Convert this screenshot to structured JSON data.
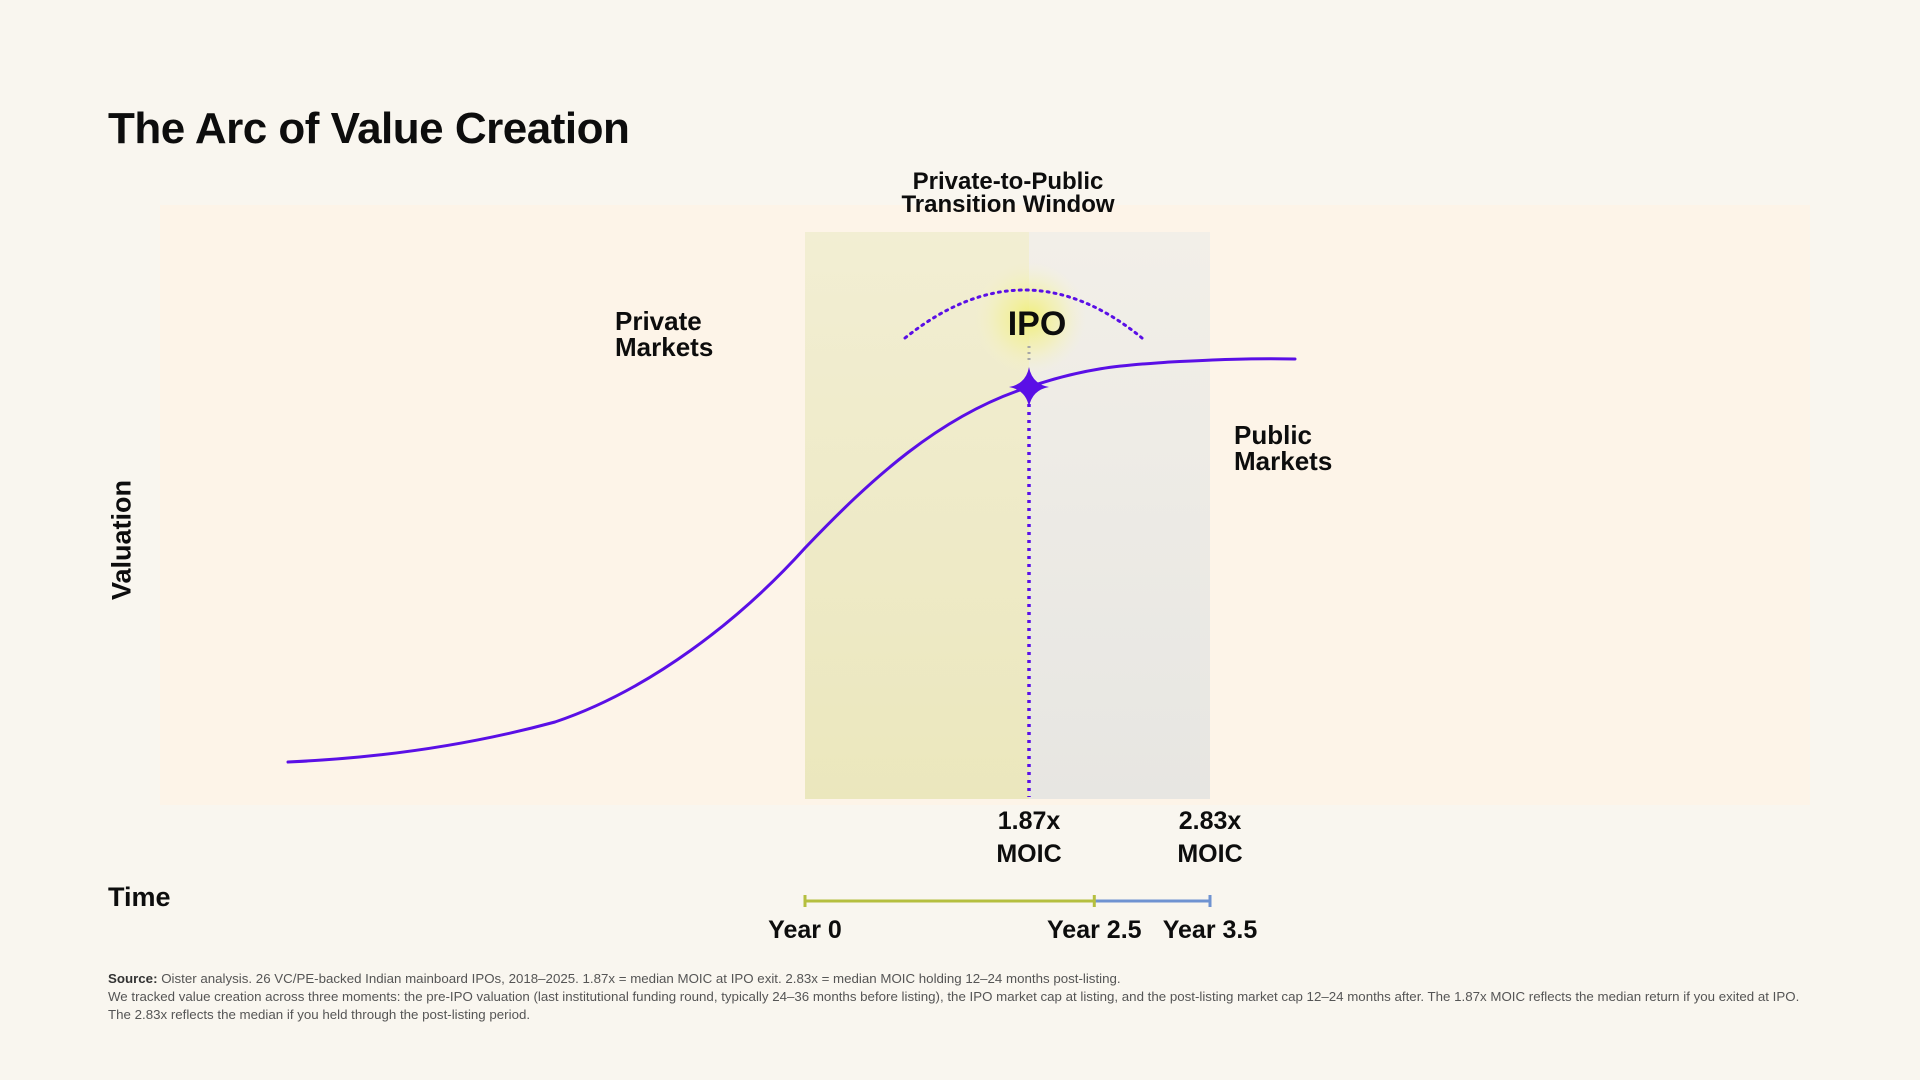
{
  "chart_data": {
    "type": "line",
    "title": "The Arc of Value Creation",
    "xlabel": "Time",
    "ylabel": "Valuation",
    "annotations": {
      "window_title_line1": "Private-to-Public",
      "window_title_line2": "Transition Window",
      "private_line1": "Private",
      "private_line2": "Markets",
      "public_line1": "Public",
      "public_line2": "Markets",
      "ipo": "IPO",
      "moic1_value": "1.87x",
      "moic1_unit": "MOIC",
      "moic2_value": "2.83x",
      "moic2_unit": "MOIC"
    },
    "timeline": {
      "ticks": [
        {
          "label": "Year 0",
          "value": 0
        },
        {
          "label": "Year 2.5",
          "value": 2.5
        },
        {
          "label": "Year 3.5",
          "value": 3.5
        }
      ],
      "segment_colors": [
        "#b5bf3f",
        "#6f93d1"
      ]
    },
    "colors": {
      "curve": "#5a0fe6",
      "window_private": "#ede9be",
      "window_public": "#eaeae7",
      "plot_bg": "#fdf4e8"
    }
  },
  "footnote": {
    "source_label": "Source:",
    "source_text": " Oister analysis. 26 VC/PE-backed Indian mainboard IPOs, 2018–2025. 1.87x = median MOIC at IPO exit. 2.83x = median MOIC holding 12–24 months post-listing.",
    "method_text": "We tracked value creation across three moments: the pre-IPO valuation (last institutional funding round, typically 24–36 months before listing), the IPO market cap at listing, and the post-listing market cap 12–24 months after. The 1.87x MOIC reflects the median return if you exited at IPO. The 2.83x reflects the median if you held through the post-listing period."
  }
}
